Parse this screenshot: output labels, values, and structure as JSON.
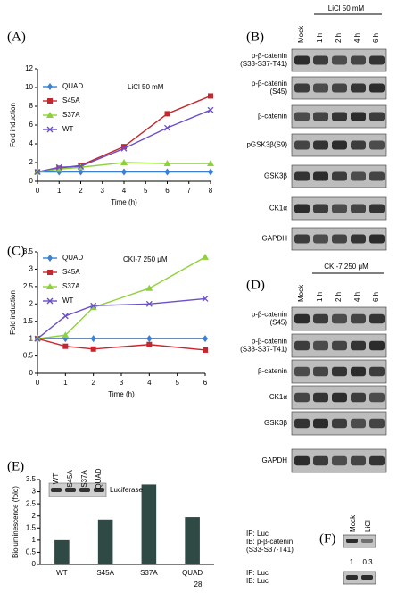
{
  "chart_data": [
    {
      "type": "line",
      "panel": "(A)",
      "annotation": "LiCl 50 mM",
      "y_label": "Fold induction",
      "x_label": "Time (h)",
      "x": [
        0,
        1,
        2,
        4,
        6,
        8
      ],
      "xlim": [
        0,
        8
      ],
      "xticks": [
        0,
        1,
        2,
        3,
        4,
        5,
        6,
        7,
        8
      ],
      "ylim": [
        0,
        12
      ],
      "yticks": [
        0,
        2,
        4,
        6,
        8,
        10,
        12
      ],
      "series": [
        {
          "name": "QUAD",
          "color": "#3b7fd6",
          "marker": "diamond",
          "values": [
            1,
            1,
            1,
            1,
            1,
            1
          ]
        },
        {
          "name": "S45A",
          "color": "#c8262d",
          "marker": "square",
          "values": [
            1,
            1.4,
            1.7,
            3.7,
            7.2,
            9.1
          ]
        },
        {
          "name": "S37A",
          "color": "#8fd13a",
          "marker": "triangle",
          "values": [
            1,
            1.3,
            1.5,
            2.0,
            1.9,
            1.9
          ]
        },
        {
          "name": "WT",
          "color": "#6a4fc9",
          "marker": "x",
          "values": [
            1,
            1.5,
            1.6,
            3.5,
            5.7,
            7.6
          ]
        }
      ]
    },
    {
      "type": "line",
      "panel": "(C)",
      "annotation": "CKI-7 250 μM",
      "y_label": "Fold induction",
      "x_label": "Time (h)",
      "x": [
        0,
        1,
        2,
        4,
        6
      ],
      "xlim": [
        0,
        6
      ],
      "xticks": [
        0,
        1,
        2,
        3,
        4,
        5,
        6
      ],
      "ylim": [
        0,
        3.5
      ],
      "yticks": [
        0,
        0.5,
        1,
        1.5,
        2,
        2.5,
        3,
        3.5
      ],
      "series": [
        {
          "name": "QUAD",
          "color": "#3b7fd6",
          "marker": "diamond",
          "values": [
            1,
            1,
            1,
            1,
            1
          ]
        },
        {
          "name": "S45A",
          "color": "#c8262d",
          "marker": "square",
          "values": [
            1,
            0.78,
            0.7,
            0.83,
            0.67
          ]
        },
        {
          "name": "S37A",
          "color": "#8fd13a",
          "marker": "triangle",
          "values": [
            1,
            1.1,
            1.9,
            2.45,
            3.35
          ]
        },
        {
          "name": "WT",
          "color": "#6a4fc9",
          "marker": "x",
          "values": [
            1,
            1.65,
            1.95,
            2.0,
            2.15
          ]
        }
      ]
    },
    {
      "type": "bar",
      "panel": "(E)",
      "y_label": "Bioluminescence (fold)",
      "color": "#2f4a45",
      "categories": [
        "WT",
        "S45A",
        "S37A",
        "QUAD"
      ],
      "values": [
        1,
        1.85,
        3.3,
        1.95
      ],
      "ylim": [
        0,
        3.5
      ],
      "yticks": [
        0,
        0.5,
        1,
        1.5,
        2,
        2.5,
        3,
        3.5
      ],
      "inset": {
        "label": "Luciferase",
        "lanes": [
          "WT",
          "S45A",
          "S37A",
          "QUAD"
        ]
      }
    }
  ],
  "blots": [
    {
      "panel": "(B)",
      "header": "LiCl 50 mM",
      "lanes": [
        "Mock",
        "1 h",
        "2 h",
        "4 h",
        "6 h"
      ],
      "rows": [
        [
          "p-β-catenin",
          "(S33-S37-T41)"
        ],
        [
          "p-β-catenin",
          "(S45)"
        ],
        [
          "β-catenin"
        ],
        [
          "pGSK3β(S9)"
        ],
        [
          "GSK3β"
        ],
        [
          "CK1α"
        ],
        [
          "GAPDH"
        ]
      ]
    },
    {
      "panel": "(D)",
      "header": "CKI-7 250 μM",
      "lanes": [
        "Mock",
        "1 h",
        "2 h",
        "4 h",
        "6 h"
      ],
      "rows": [
        [
          "p-β-catenin",
          "(S45)"
        ],
        [
          "p-β-catenin",
          "(S33-S37-T41)"
        ],
        [
          "β-catenin"
        ],
        [
          "CK1α"
        ],
        [
          "GSK3β"
        ],
        [
          "GAPDH"
        ]
      ]
    }
  ],
  "blot_f": {
    "panel": "(F)",
    "lanes": [
      "Mock",
      "LiCl"
    ],
    "top_labels": [
      "IP: Luc",
      "IB: p-β-catenin",
      "(S33-S37-T41)"
    ],
    "quantities": [
      "1",
      "0.3"
    ],
    "bottom_labels": [
      "IP: Luc",
      "IB: Luc"
    ]
  },
  "page_number": "28"
}
